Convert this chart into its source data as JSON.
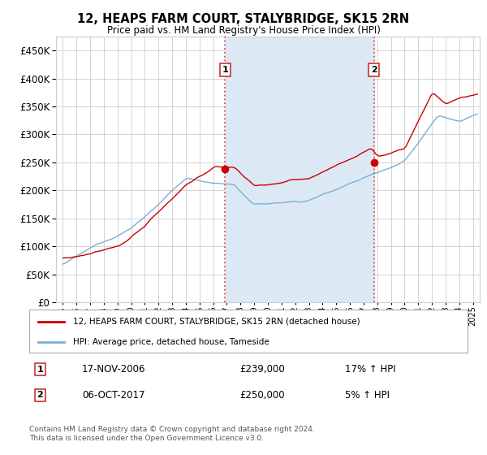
{
  "title": "12, HEAPS FARM COURT, STALYBRIDGE, SK15 2RN",
  "subtitle": "Price paid vs. HM Land Registry's House Price Index (HPI)",
  "ylim": [
    0,
    475000
  ],
  "yticks": [
    0,
    50000,
    100000,
    150000,
    200000,
    250000,
    300000,
    350000,
    400000,
    450000
  ],
  "sale1_date": 2006.88,
  "sale1_price": 239000,
  "sale2_date": 2017.77,
  "sale2_price": 250000,
  "shade_color": "#dce9f5",
  "red_line_color": "#cc0000",
  "blue_line_color": "#7aafd4",
  "dashed_color": "#e05050",
  "grid_color": "#cccccc",
  "bg_color": "#ffffff",
  "legend1_label": "12, HEAPS FARM COURT, STALYBRIDGE, SK15 2RN (detached house)",
  "legend2_label": "HPI: Average price, detached house, Tameside",
  "footer": "Contains HM Land Registry data © Crown copyright and database right 2024.\nThis data is licensed under the Open Government Licence v3.0.",
  "xstart": 1994.5,
  "xend": 2025.5,
  "xtick_years": [
    1995,
    1996,
    1997,
    1998,
    1999,
    2000,
    2001,
    2002,
    2003,
    2004,
    2005,
    2006,
    2007,
    2008,
    2009,
    2010,
    2011,
    2012,
    2013,
    2014,
    2015,
    2016,
    2017,
    2018,
    2019,
    2020,
    2021,
    2022,
    2023,
    2024,
    2025
  ]
}
